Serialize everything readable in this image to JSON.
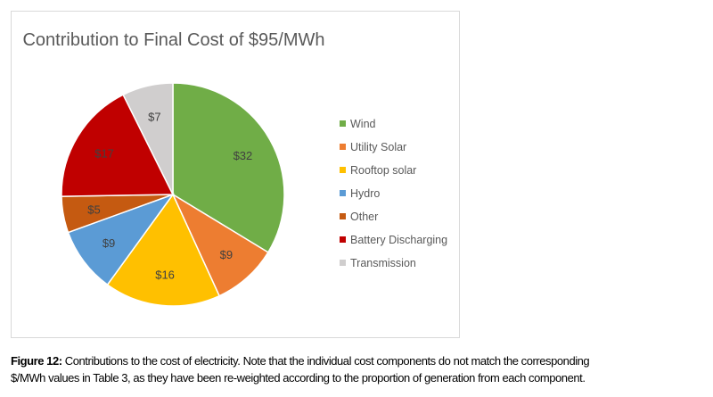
{
  "chart_data": {
    "type": "pie",
    "title": "Contribution to Final Cost of $95/MWh",
    "start_angle": "12 o'clock",
    "direction": "clockwise",
    "legend_position": "right",
    "slices": [
      {
        "name": "Wind",
        "value": 32,
        "label": "$32",
        "color": "#70AD47"
      },
      {
        "name": "Utility Solar",
        "value": 9,
        "label": "$9",
        "color": "#ED7D31"
      },
      {
        "name": "Rooftop solar",
        "value": 16,
        "label": "$16",
        "color": "#FFC000"
      },
      {
        "name": "Hydro",
        "value": 9,
        "label": "$9",
        "color": "#5B9BD5"
      },
      {
        "name": "Other",
        "value": 5,
        "label": "$5",
        "color": "#C55A11"
      },
      {
        "name": "Battery Discharging",
        "value": 17,
        "label": "$17",
        "color": "#C00000"
      },
      {
        "name": "Transmission",
        "value": 7,
        "label": "$7",
        "color": "#D0CECE"
      }
    ]
  },
  "caption": {
    "bold": "Figure 12:",
    "line1": " Contributions to the cost of electricity. Note that the individual cost components do not match the corresponding",
    "line2": "$/MWh values in Table 3, as they have been re-weighted according to the proportion of generation from each component."
  }
}
